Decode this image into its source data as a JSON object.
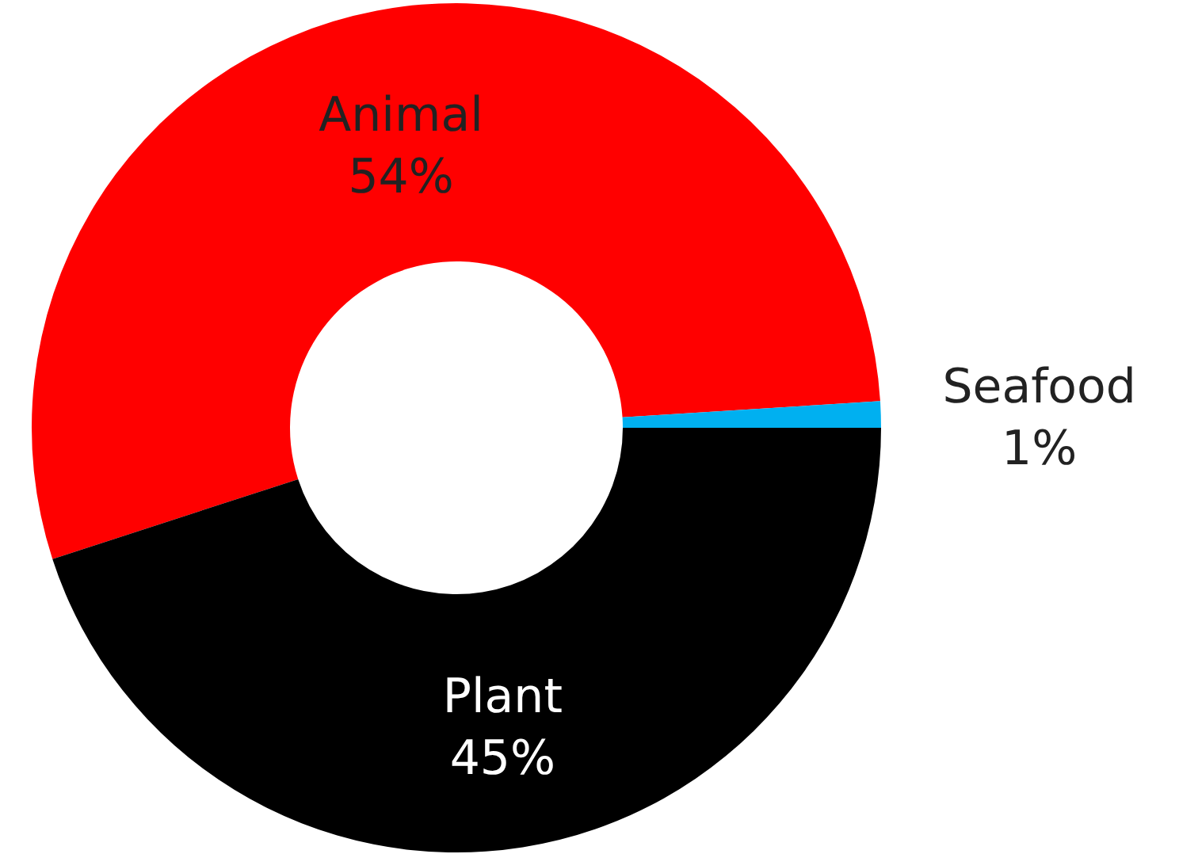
{
  "chart_data": {
    "type": "donut",
    "categories": [
      "Animal",
      "Seafood",
      "Plant"
    ],
    "values": [
      54,
      1,
      45
    ],
    "value_labels": [
      "54%",
      "1%",
      "45%"
    ],
    "colors": [
      "#ff0000",
      "#00b0f0",
      "#000000"
    ]
  }
}
